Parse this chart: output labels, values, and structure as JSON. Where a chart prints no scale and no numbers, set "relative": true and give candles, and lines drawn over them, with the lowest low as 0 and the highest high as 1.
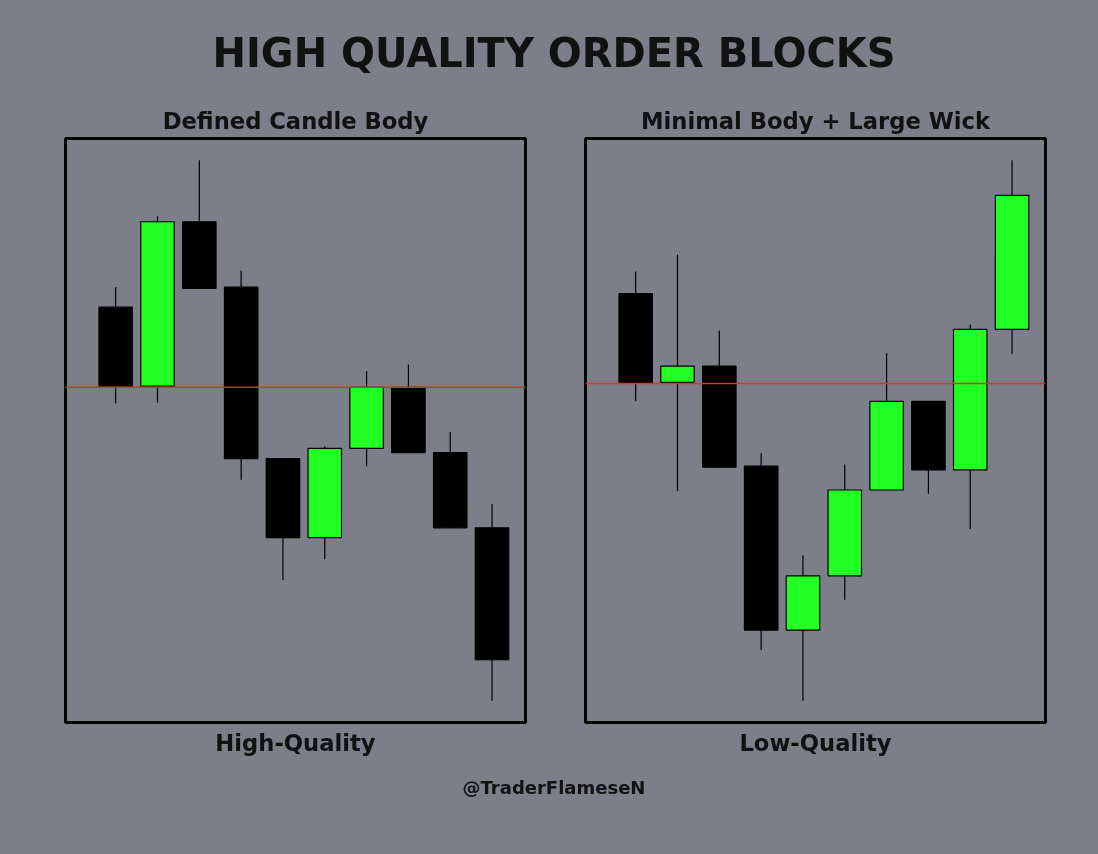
{
  "chart_data": [
    {
      "type": "candlestick",
      "title": "HIGH QUALITY ORDER BLOCKS",
      "subtitle": "Defined Candle Body",
      "xlabel": "High-Quality",
      "relative": true,
      "categories": [
        null,
        null,
        null,
        null,
        null,
        null,
        null,
        null,
        null,
        null
      ],
      "ohlc": [
        [
          0.728,
          0.765,
          0.55,
          0.582
        ],
        [
          0.582,
          0.896,
          0.552,
          0.886
        ],
        [
          0.886,
          1,
          0.763,
          0.763
        ],
        [
          0.765,
          0.796,
          0.409,
          0.448
        ],
        [
          0.448,
          0.448,
          0.223,
          0.302
        ],
        [
          0.302,
          0.471,
          0.262,
          0.467
        ],
        [
          0.467,
          0.61,
          0.434,
          0.58
        ],
        [
          0.58,
          0.622,
          0.459,
          0.459
        ],
        [
          0.459,
          0.497,
          0.32,
          0.32
        ],
        [
          0.32,
          0.364,
          0,
          0.076
        ]
      ],
      "colors": [
        "#000000",
        "#22ff22",
        "#000000",
        "#000000",
        "#000000",
        "#22ff22",
        "#22ff22",
        "#000000",
        "#000000",
        "#000000"
      ],
      "ref_lines": [
        {
          "axis": "y",
          "value": 0.58,
          "color": "#e0302a"
        }
      ]
    },
    {
      "type": "candlestick",
      "subtitle": "Minimal Body + Large Wick",
      "xlabel": "Low-Quality",
      "relative": true,
      "annotations": [
        "@TraderFlameseN"
      ],
      "categories": [
        null,
        null,
        null,
        null,
        null,
        null,
        null,
        null,
        null,
        null
      ],
      "ohlc": [
        [
          0.753,
          0.794,
          0.554,
          0.587
        ],
        [
          0.589,
          0.825,
          0.388,
          0.619
        ],
        [
          0.619,
          0.685,
          0.432,
          0.432
        ],
        [
          0.434,
          0.458,
          0.094,
          0.131
        ],
        [
          0.131,
          0.269,
          0,
          0.231
        ],
        [
          0.231,
          0.437,
          0.187,
          0.39
        ],
        [
          0.39,
          0.643,
          0.39,
          0.554
        ],
        [
          0.554,
          0.554,
          0.383,
          0.427
        ],
        [
          0.427,
          0.696,
          0.318,
          0.687
        ],
        [
          0.687,
          1,
          0.642,
          0.935
        ]
      ],
      "colors": [
        "#000000",
        "#22ff22",
        "#000000",
        "#000000",
        "#22ff22",
        "#22ff22",
        "#22ff22",
        "#000000",
        "#22ff22",
        "#22ff22"
      ],
      "ref_lines": [
        {
          "axis": "y",
          "value": 0.587,
          "color": "#e0302a"
        }
      ]
    }
  ]
}
